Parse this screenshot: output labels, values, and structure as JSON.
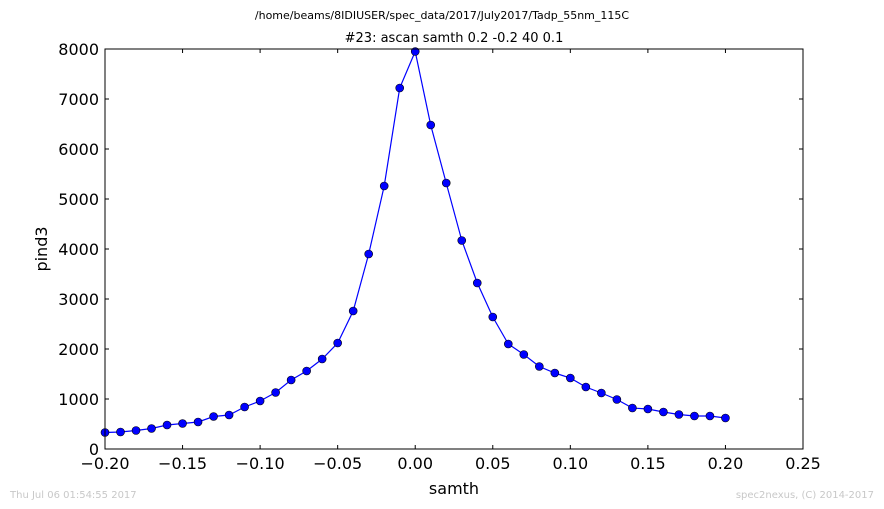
{
  "figure": {
    "suptitle": "/home/beams/8IDIUSER/spec_data/2017/July2017/Tadp_55nm_115C",
    "footer_left": "Thu Jul 06 01:54:55 2017",
    "footer_right": "spec2nexus, (C) 2014-2017"
  },
  "chart_data": {
    "type": "line",
    "title": "#23: ascan  samth 0.2 -0.2  40 0.1",
    "xlabel": "samth",
    "ylabel": "pind3",
    "xlim": [
      -0.2,
      0.25
    ],
    "ylim": [
      0,
      8000
    ],
    "grid": false,
    "x_ticks": [
      -0.2,
      -0.15,
      -0.1,
      -0.05,
      0.0,
      0.05,
      0.1,
      0.15,
      0.2,
      0.25
    ],
    "x_tick_labels": [
      "−0.20",
      "−0.15",
      "−0.10",
      "−0.05",
      "0.00",
      "0.05",
      "0.10",
      "0.15",
      "0.20",
      "0.25"
    ],
    "y_ticks": [
      0,
      1000,
      2000,
      3000,
      4000,
      5000,
      6000,
      7000,
      8000
    ],
    "y_tick_labels": [
      "0",
      "1000",
      "2000",
      "3000",
      "4000",
      "5000",
      "6000",
      "7000",
      "8000"
    ],
    "line_color": "#0000ff",
    "marker_color": "#0000ff",
    "series": [
      {
        "x": [
          -0.2,
          -0.19,
          -0.18,
          -0.17,
          -0.16,
          -0.15,
          -0.14,
          -0.13,
          -0.12,
          -0.11,
          -0.1,
          -0.09,
          -0.08,
          -0.07,
          -0.06,
          -0.05,
          -0.04,
          -0.03,
          -0.02,
          -0.01,
          0.0,
          0.01,
          0.02,
          0.03,
          0.04,
          0.05,
          0.06,
          0.07,
          0.08,
          0.09,
          0.1,
          0.11,
          0.12,
          0.13,
          0.14,
          0.15,
          0.16,
          0.17,
          0.18,
          0.19,
          0.2
        ],
        "y": [
          330,
          340,
          370,
          410,
          480,
          510,
          540,
          650,
          680,
          840,
          960,
          1130,
          1380,
          1560,
          1800,
          2120,
          2760,
          3900,
          5260,
          7220,
          7950,
          6480,
          5320,
          4170,
          3320,
          2640,
          2100,
          1890,
          1650,
          1520,
          1420,
          1240,
          1120,
          990,
          820,
          800,
          740,
          690,
          660,
          660,
          620
        ]
      }
    ]
  }
}
